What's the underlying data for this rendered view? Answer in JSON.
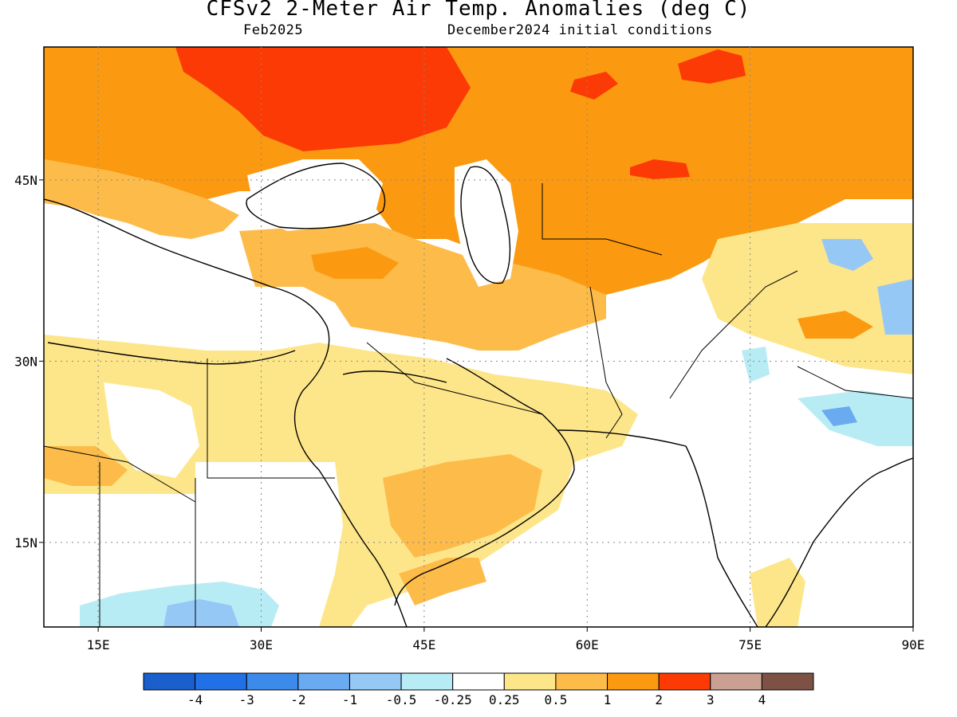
{
  "title": "CFSv2 2-Meter Air Temp. Anomalies (deg C)",
  "subtitle_left": "Feb2025",
  "subtitle_right": "December2024 initial conditions",
  "map": {
    "lon_range": [
      10,
      90
    ],
    "lat_range": [
      8,
      56
    ],
    "lon_ticks": [
      {
        "value": 15,
        "label": "15E"
      },
      {
        "value": 30,
        "label": "30E"
      },
      {
        "value": 45,
        "label": "45E"
      },
      {
        "value": 60,
        "label": "60E"
      },
      {
        "value": 75,
        "label": "75E"
      },
      {
        "value": 90,
        "label": "90E"
      }
    ],
    "lat_ticks": [
      {
        "value": 45,
        "label": "45N"
      },
      {
        "value": 30,
        "label": "30N"
      },
      {
        "value": 15,
        "label": "15N"
      }
    ]
  },
  "colorbar": {
    "colors": [
      "#1a5fcc",
      "#2270e6",
      "#3c8ae9",
      "#6aaaf0",
      "#96c8f5",
      "#b8ecf5",
      "#ffffff",
      "#fde68a",
      "#fdbb4a",
      "#fb9a10",
      "#fb3a05",
      "#c9a092",
      "#7d5244"
    ],
    "labels": [
      "-4",
      "-3",
      "-2",
      "-1",
      "-0.5",
      "-0.25",
      "0.25",
      "0.5",
      "1",
      "2",
      "3",
      "4"
    ]
  }
}
